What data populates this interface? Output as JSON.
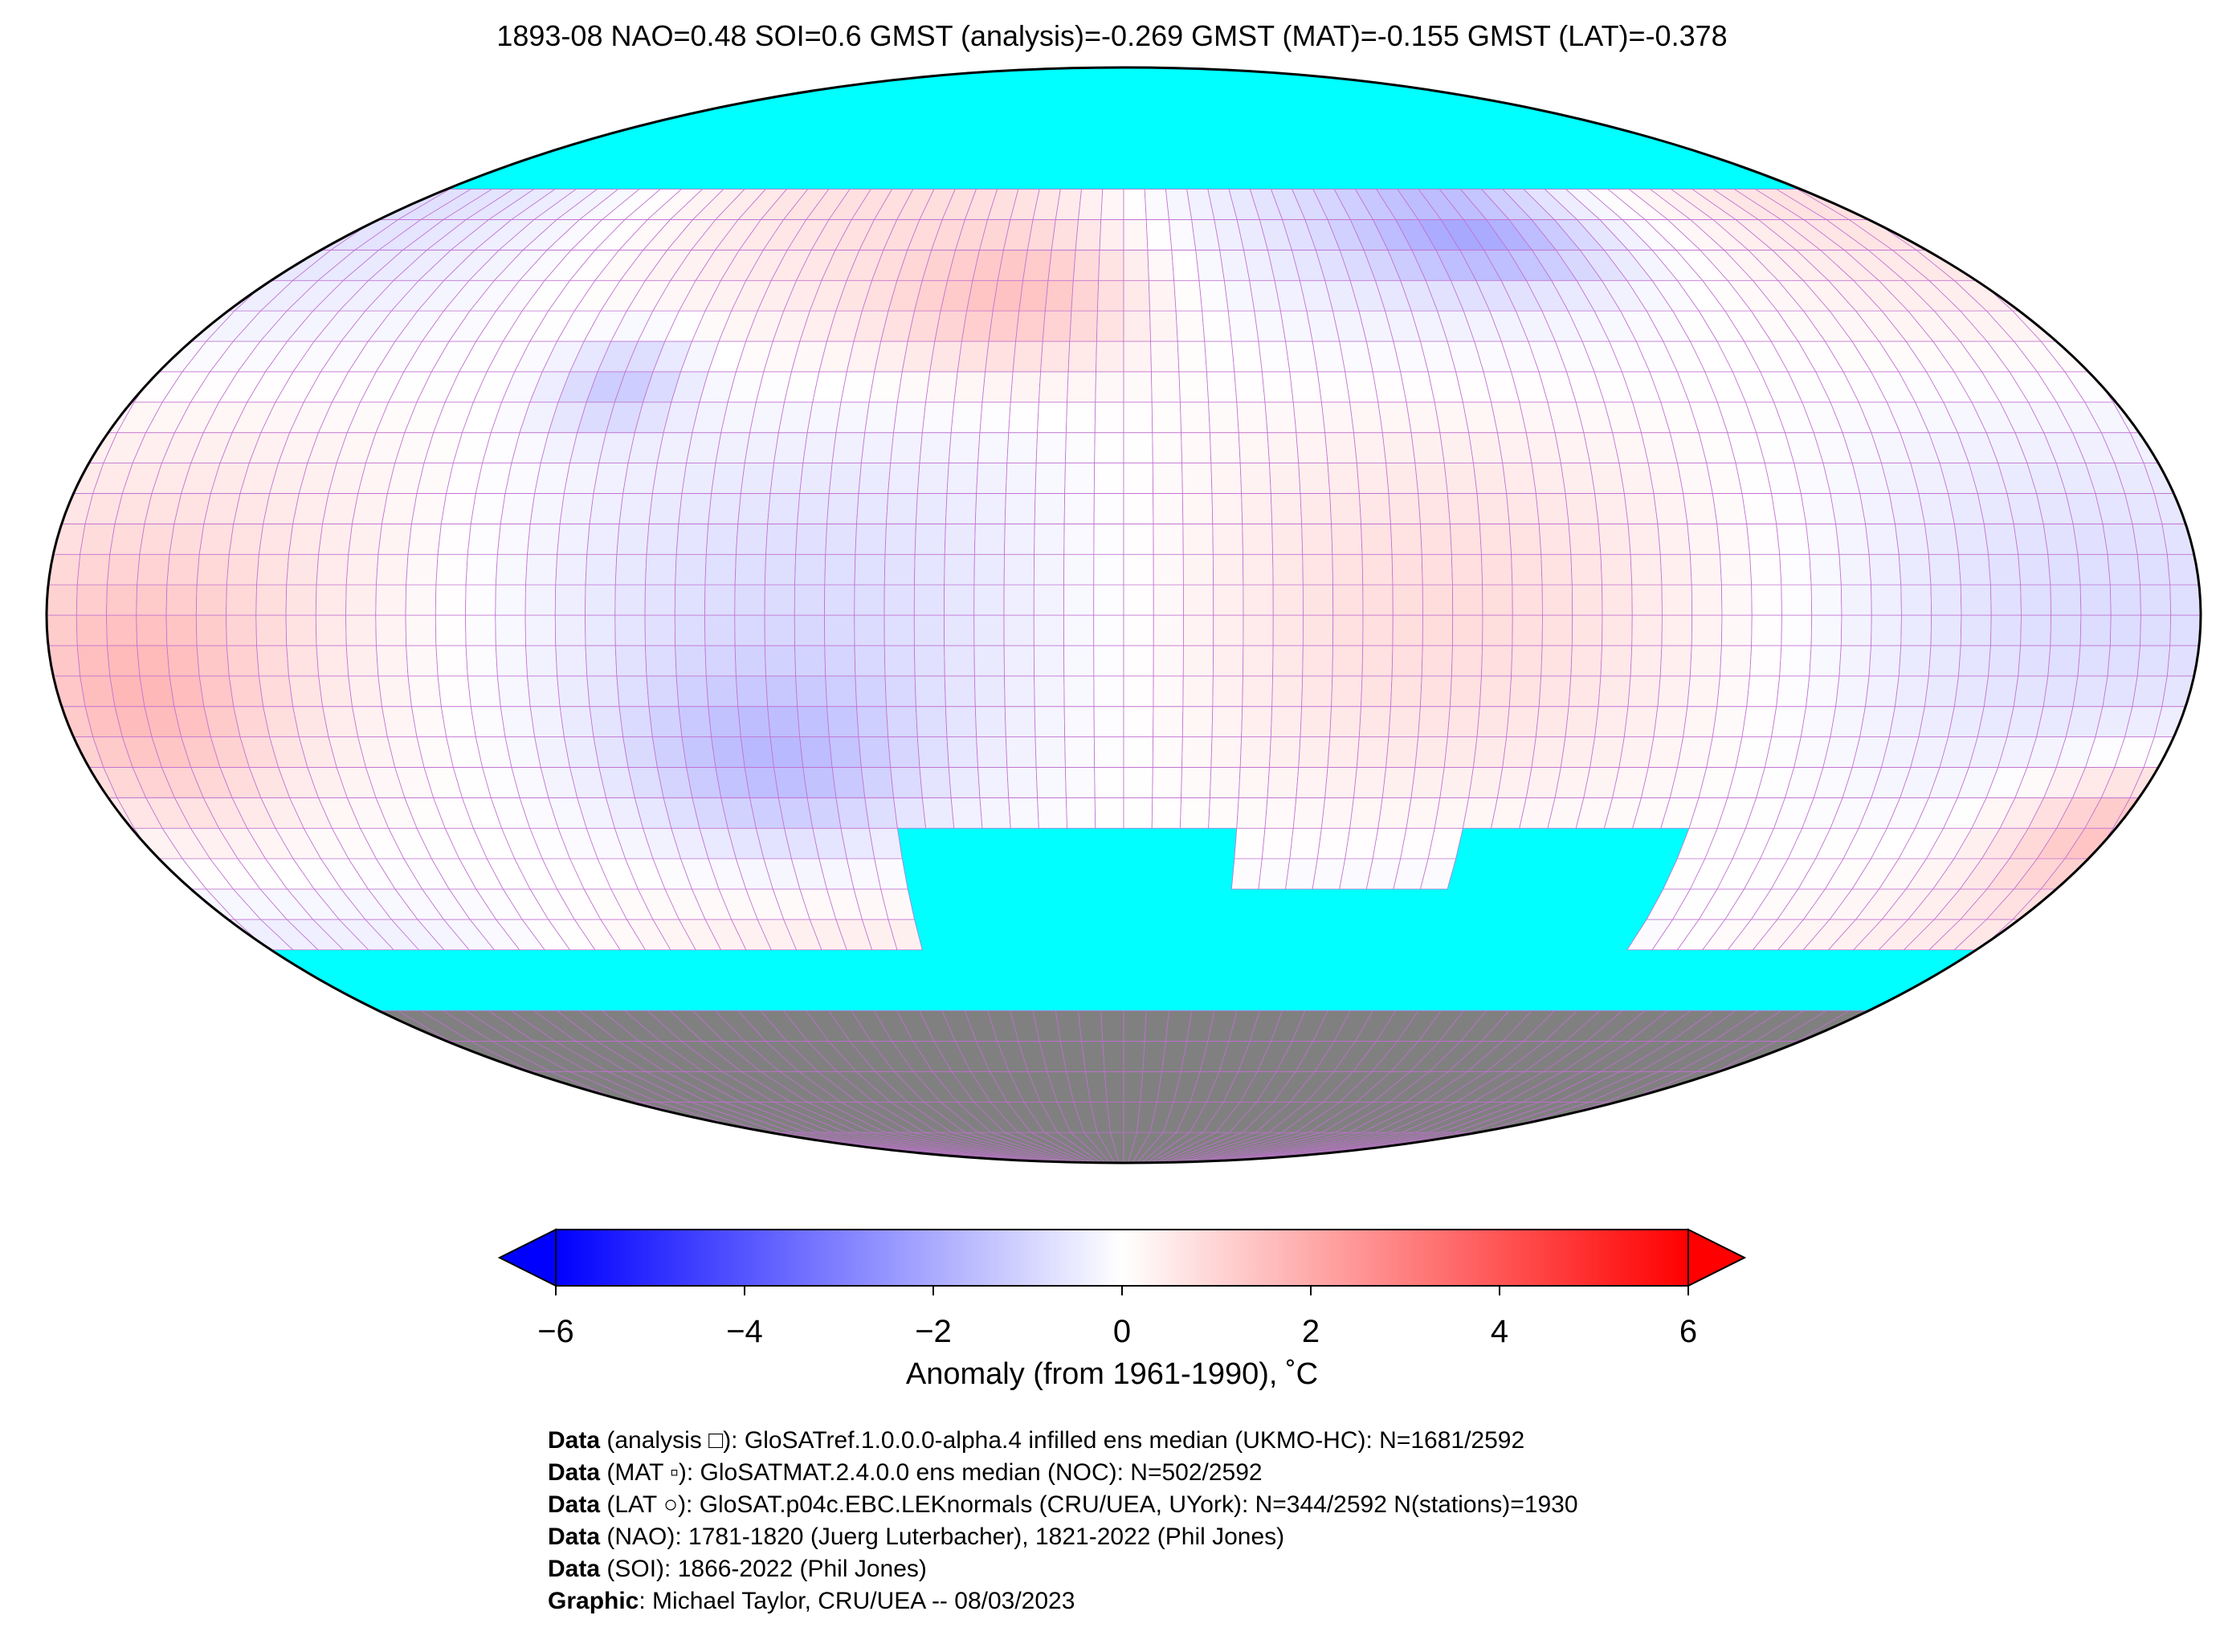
{
  "title": "1893-08 NAO=0.48 SOI=0.6 GMST (analysis)=-0.269 GMST (MAT)=-0.155 GMST (LAT)=-0.378",
  "colorbar": {
    "label": "Anomaly (from 1961-1990), ˚C",
    "ticks": [
      "−6",
      "−4",
      "−2",
      "0",
      "2",
      "4",
      "6"
    ],
    "range": [
      -6,
      6
    ],
    "colors": {
      "min": "#0000ff",
      "mid": "#ffffff",
      "max": "#ff0000"
    },
    "extend": "both"
  },
  "map": {
    "projection": "Robinson",
    "missing_color": "#00ffff",
    "land_mask_color": "#808080",
    "gridlines": "on"
  },
  "footer": [
    {
      "bold": "Data",
      "text": " (analysis □): GloSATref.1.0.0.0-alpha.4 infilled ens median (UKMO-HC): N=1681/2592"
    },
    {
      "bold": "Data",
      "text": " (MAT ▫): GloSATMAT.2.4.0.0 ens median (NOC): N=502/2592"
    },
    {
      "bold": "Data",
      "text": " (LAT ○): GloSAT.p04c.EBC.LEKnormals (CRU/UEA, UYork): N=344/2592 N(stations)=1930"
    },
    {
      "bold": "Data",
      "text": " (NAO): 1781-1820 (Juerg Luterbacher), 1821-2022 (Phil Jones)"
    },
    {
      "bold": "Data",
      "text": " (SOI): 1866-2022 (Phil Jones)"
    },
    {
      "bold": "Graphic",
      "text": ": Michael Taylor, CRU/UEA -- 08/03/2023"
    }
  ]
}
